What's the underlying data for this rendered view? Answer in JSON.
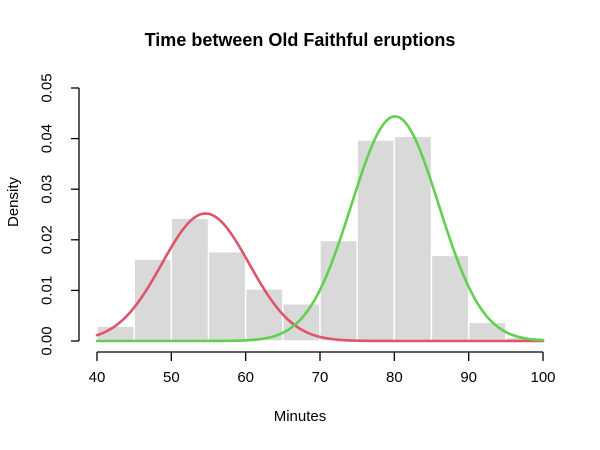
{
  "chart_data": {
    "type": "histogram",
    "title": "Time between Old Faithful eruptions",
    "xlabel": "Minutes",
    "ylabel": "Density",
    "xlim": [
      40,
      100
    ],
    "ylim": [
      0,
      0.05
    ],
    "x_ticks": [
      40,
      50,
      60,
      70,
      80,
      90,
      100
    ],
    "x_tick_labels": [
      "40",
      "50",
      "60",
      "70",
      "80",
      "90",
      "100"
    ],
    "y_ticks": [
      0,
      0.01,
      0.02,
      0.03,
      0.04,
      0.05
    ],
    "y_tick_labels": [
      "0.00",
      "0.01",
      "0.02",
      "0.03",
      "0.04",
      "0.05"
    ],
    "grid": false,
    "legend": "none",
    "histogram": {
      "bin_start": 40,
      "bin_width": 5,
      "bin_edges": [
        40,
        45,
        50,
        55,
        60,
        65,
        70,
        75,
        80,
        85,
        90,
        95,
        100
      ],
      "densities": [
        0.00294,
        0.01618,
        0.02426,
        0.01765,
        0.01029,
        0.00735,
        0.01985,
        0.03971,
        0.04044,
        0.01691,
        0.00368,
        0.00074
      ],
      "fill_color": "#d9d9d9",
      "border_color": "#ffffff"
    },
    "curves": [
      {
        "name": "mixture-component-1",
        "type": "gaussian",
        "mean": 54.6,
        "sd": 5.87,
        "peak_density": 0.0252,
        "color": "#df536b"
      },
      {
        "name": "mixture-component-2",
        "type": "gaussian",
        "mean": 80.1,
        "sd": 5.87,
        "peak_density": 0.0444,
        "color": "#61d04f"
      }
    ],
    "colors": {
      "axis": "#000000",
      "background": "#ffffff"
    }
  }
}
